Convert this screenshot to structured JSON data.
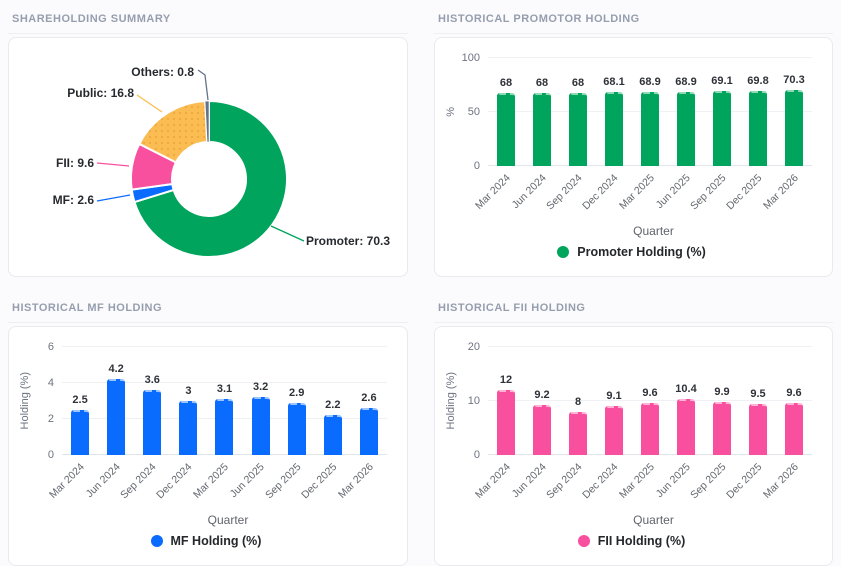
{
  "sections": {
    "summary_title": "SHAREHOLDING SUMMARY",
    "promoter_title": "HISTORICAL PROMOTOR HOLDING",
    "mf_title": "HISTORICAL MF HOLDING",
    "fii_title": "HISTORICAL FII HOLDING"
  },
  "chart_data": [
    {
      "type": "pie",
      "title": "SHAREHOLDING SUMMARY",
      "labels": [
        "Promoter",
        "MF",
        "FII",
        "Public",
        "Others"
      ],
      "values": [
        70.3,
        2.6,
        9.6,
        16.8,
        0.8
      ],
      "colors": [
        "#00a45c",
        "#0a6cff",
        "#f8509e",
        "#fbbd52",
        "#64748b"
      ],
      "pattern_fill": [
        false,
        false,
        false,
        true,
        false
      ],
      "donut": true,
      "label_format": "name: value",
      "start_angle_top": true,
      "clockwise": true
    },
    {
      "type": "bar",
      "title": "HISTORICAL PROMOTOR HOLDING",
      "categories": [
        "Mar 2024",
        "Jun 2024",
        "Sep 2024",
        "Dec 2024",
        "Mar 2025",
        "Jun 2025",
        "Sep 2025",
        "Dec 2025",
        "Mar 2026"
      ],
      "values": [
        68,
        68,
        68,
        68.1,
        68.9,
        68.9,
        69.1,
        69.8,
        70.3
      ],
      "xlabel": "Quarter",
      "ylabel": "%",
      "ylim": [
        0,
        100
      ],
      "yticks": [
        0,
        50,
        100
      ],
      "legend": "Promoter Holding (%)",
      "legend_position": "bottom",
      "grid": true,
      "color": "#00a45c",
      "color_light": "#8ed9b6"
    },
    {
      "type": "bar",
      "title": "HISTORICAL MF HOLDING",
      "categories": [
        "Mar 2024",
        "Jun 2024",
        "Sep 2024",
        "Dec 2024",
        "Mar 2025",
        "Jun 2025",
        "Sep 2025",
        "Dec 2025",
        "Mar 2026"
      ],
      "values": [
        2.5,
        4.2,
        3.6,
        3,
        3.1,
        3.2,
        2.9,
        2.2,
        2.6
      ],
      "xlabel": "Quarter",
      "ylabel": "Holding (%)",
      "ylim": [
        0,
        6
      ],
      "yticks": [
        0,
        2,
        4,
        6
      ],
      "legend": "MF Holding (%)",
      "legend_position": "bottom",
      "grid": true,
      "color": "#0a6cff",
      "color_light": "#9cc4ff"
    },
    {
      "type": "bar",
      "title": "HISTORICAL FII HOLDING",
      "categories": [
        "Mar 2024",
        "Jun 2024",
        "Sep 2024",
        "Dec 2024",
        "Mar 2025",
        "Jun 2025",
        "Sep 2025",
        "Dec 2025",
        "Mar 2026"
      ],
      "values": [
        12,
        9.2,
        8,
        9.1,
        9.6,
        10.4,
        9.9,
        9.5,
        9.6
      ],
      "xlabel": "Quarter",
      "ylabel": "Holding (%)",
      "ylim": [
        0,
        20
      ],
      "yticks": [
        0,
        10,
        20
      ],
      "legend": "FII Holding (%)",
      "legend_position": "bottom",
      "grid": true,
      "color": "#f8509e",
      "color_light": "#ffb4d6"
    }
  ]
}
